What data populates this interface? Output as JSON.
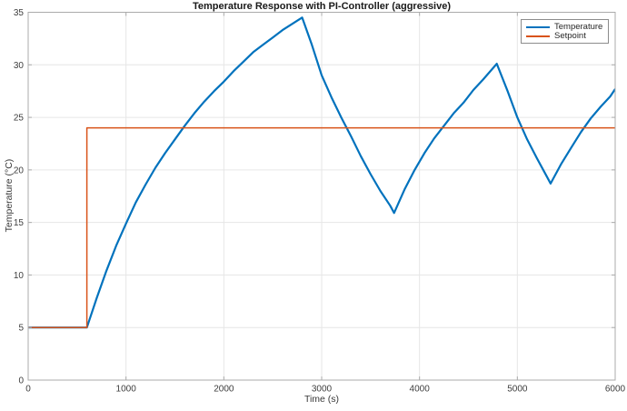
{
  "chart_data": {
    "type": "line",
    "title": "Temperature Response with PI-Controller (aggressive)",
    "xlabel": "Time (s)",
    "ylabel": "Temperature (°C)",
    "xlim": [
      0,
      6000
    ],
    "ylim": [
      0,
      35
    ],
    "xticks": [
      0,
      1000,
      2000,
      3000,
      4000,
      5000,
      6000
    ],
    "yticks": [
      0,
      5,
      10,
      15,
      20,
      25,
      30,
      35
    ],
    "grid": true,
    "legend": {
      "position": "top-right",
      "entries": [
        "Temperature",
        "Setpoint"
      ]
    },
    "colors": {
      "temperature": "#0072BD",
      "setpoint": "#D95319",
      "grid": "#e6e6e6",
      "axis_box": "#ababab",
      "tick_label": "#3d3d3d",
      "legend_border": "#8c8c8c"
    },
    "series": [
      {
        "name": "Temperature",
        "color": "#0072BD",
        "line_width": 2.2,
        "points": [
          [
            0,
            5.0
          ],
          [
            600,
            5.0
          ],
          [
            700,
            7.8
          ],
          [
            800,
            10.4
          ],
          [
            900,
            12.8
          ],
          [
            1000,
            14.9
          ],
          [
            1100,
            16.9
          ],
          [
            1200,
            18.6
          ],
          [
            1300,
            20.2
          ],
          [
            1400,
            21.6
          ],
          [
            1500,
            22.9
          ],
          [
            1600,
            24.2
          ],
          [
            1700,
            25.4
          ],
          [
            1800,
            26.5
          ],
          [
            1900,
            27.5
          ],
          [
            2000,
            28.4
          ],
          [
            2100,
            29.4
          ],
          [
            2200,
            30.3
          ],
          [
            2300,
            31.2
          ],
          [
            2400,
            31.9
          ],
          [
            2500,
            32.6
          ],
          [
            2600,
            33.3
          ],
          [
            2700,
            33.9
          ],
          [
            2800,
            34.5
          ],
          [
            2900,
            31.9
          ],
          [
            3000,
            29.0
          ],
          [
            3100,
            26.9
          ],
          [
            3200,
            25.0
          ],
          [
            3300,
            23.2
          ],
          [
            3400,
            21.3
          ],
          [
            3500,
            19.6
          ],
          [
            3600,
            18.0
          ],
          [
            3700,
            16.6
          ],
          [
            3740,
            15.9
          ],
          [
            3850,
            18.2
          ],
          [
            3950,
            20.0
          ],
          [
            4050,
            21.6
          ],
          [
            4150,
            23.0
          ],
          [
            4250,
            24.2
          ],
          [
            4350,
            25.4
          ],
          [
            4450,
            26.4
          ],
          [
            4550,
            27.6
          ],
          [
            4650,
            28.6
          ],
          [
            4790,
            30.1
          ],
          [
            4900,
            27.5
          ],
          [
            5000,
            25.0
          ],
          [
            5100,
            22.9
          ],
          [
            5200,
            21.1
          ],
          [
            5300,
            19.4
          ],
          [
            5340,
            18.7
          ],
          [
            5450,
            20.6
          ],
          [
            5550,
            22.1
          ],
          [
            5650,
            23.6
          ],
          [
            5750,
            24.9
          ],
          [
            5850,
            26.0
          ],
          [
            5950,
            27.0
          ],
          [
            6000,
            27.7
          ]
        ]
      },
      {
        "name": "Setpoint",
        "color": "#D95319",
        "line_width": 1.5,
        "points": [
          [
            0,
            5
          ],
          [
            600,
            5
          ],
          [
            600,
            24
          ],
          [
            6000,
            24
          ]
        ]
      }
    ]
  }
}
